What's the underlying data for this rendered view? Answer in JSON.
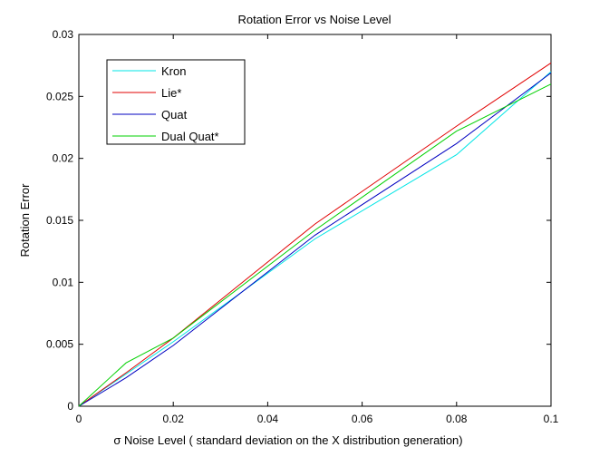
{
  "chart_data": {
    "type": "line",
    "title": "Rotation Error vs Noise Level",
    "xlabel": "σ  Noise Level ( standard deviation on the X distribution generation)",
    "ylabel": "Rotation Error",
    "xlim": [
      0,
      0.1
    ],
    "ylim": [
      0,
      0.03
    ],
    "xticks": [
      0,
      0.02,
      0.04,
      0.06,
      0.08,
      0.1
    ],
    "xtick_labels": [
      "0",
      "0.02",
      "0.04",
      "0.06",
      "0.08",
      "0.1"
    ],
    "yticks": [
      0,
      0.005,
      0.01,
      0.015,
      0.02,
      0.025,
      0.03
    ],
    "ytick_labels": [
      "0",
      "0.005",
      "0.01",
      "0.015",
      "0.02",
      "0.025",
      "0.03"
    ],
    "grid": false,
    "legend_position": "top-left",
    "x": [
      0,
      0.01,
      0.02,
      0.05,
      0.08,
      0.1
    ],
    "series": [
      {
        "name": "Kron",
        "color": "#00e5e5",
        "values": [
          0,
          0.0026,
          0.0052,
          0.0135,
          0.0203,
          0.027
        ]
      },
      {
        "name": "Lie*",
        "color": "#e00000",
        "values": [
          0,
          0.0027,
          0.0055,
          0.0147,
          0.0226,
          0.0277
        ]
      },
      {
        "name": "Quat",
        "color": "#0000c0",
        "values": [
          0,
          0.0023,
          0.0049,
          0.0138,
          0.0212,
          0.0269
        ]
      },
      {
        "name": "Dual Quat*",
        "color": "#00d000",
        "values": [
          0,
          0.0035,
          0.0055,
          0.0142,
          0.0222,
          0.026
        ]
      }
    ]
  }
}
